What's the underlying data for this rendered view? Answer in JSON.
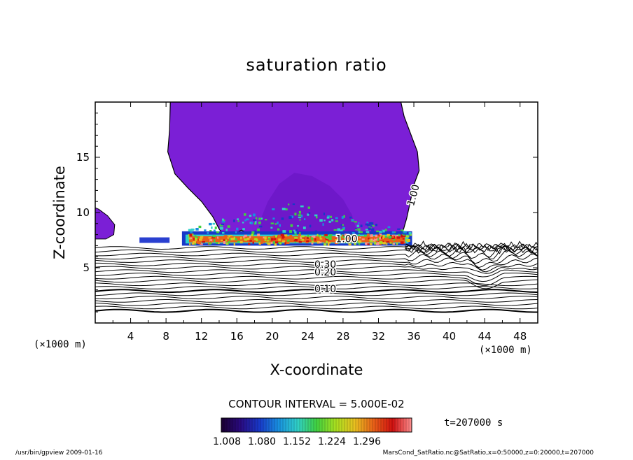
{
  "chart_data": {
    "type": "heatmap",
    "title": "saturation ratio",
    "xlabel": "X-coordinate",
    "ylabel": "Z-coordinate",
    "x_unit_label": "(×1000 m)",
    "x_unit_label_right": "(×1000 m)",
    "xlim": [
      0,
      50
    ],
    "ylim": [
      0,
      20
    ],
    "x_ticks": [
      4,
      8,
      12,
      16,
      20,
      24,
      28,
      32,
      36,
      40,
      44,
      48
    ],
    "y_ticks": [
      5,
      10,
      15
    ],
    "contour_interval_text": "CONTOUR INTERVAL = 5.000E-02",
    "time_text": "t=207000 s",
    "colorbar": {
      "tick_labels": [
        "1.008",
        "1.080",
        "1.152",
        "1.224",
        "1.296"
      ],
      "colors": [
        "#1a0030",
        "#2a0a80",
        "#1838c8",
        "#1890e0",
        "#30d0c8",
        "#40d040",
        "#a8e020",
        "#e8c020",
        "#e86018",
        "#d01010",
        "#ff9090"
      ]
    },
    "contour_labels": [
      {
        "x": 26.0,
        "y": 2.8,
        "text": "0.10"
      },
      {
        "x": 26.0,
        "y": 4.3,
        "text": "0.20"
      },
      {
        "x": 26.0,
        "y": 5.0,
        "text": "0.30"
      },
      {
        "x": 28.4,
        "y": 7.3,
        "text": "1.00"
      },
      {
        "x": 36.3,
        "y": 11.5,
        "text": "1.00"
      }
    ],
    "footer_left": "/usr/bin/gpview   2009-01-16",
    "footer_right": "MarsCond_SatRatio.nc@SatRatio,x=0:50000,z=0:20000,t=207000",
    "colors": {
      "cloud_fill": "#7b1fd6",
      "cloud_dark": "#6a17c4",
      "contour_line": "#000000",
      "background": "#ffffff"
    }
  }
}
